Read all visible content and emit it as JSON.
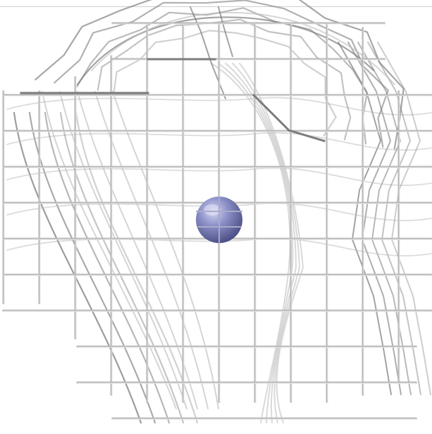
{
  "scene": {
    "background_color": "#ffffff",
    "wire_color": "#b9b9b9",
    "wire_dark_color": "#7c7c7c",
    "sphere_color": "#8589c2",
    "sphere_highlight_color": "#c7c9ee",
    "sphere_shadow_color": "#4e5288",
    "objects": {
      "front_grid": "planar-wire-grid",
      "warped_mesh": "curved-wire-mesh",
      "sphere": "small-sphere"
    }
  }
}
